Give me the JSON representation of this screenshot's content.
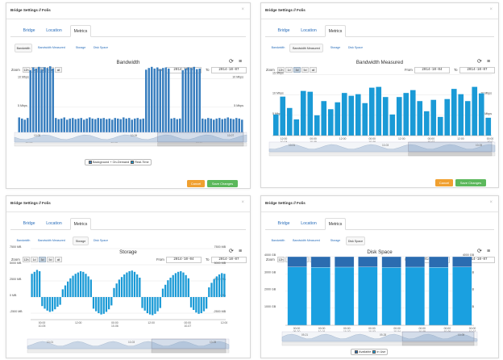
{
  "panels": [
    {
      "id": "bandwidth",
      "header_title": "Bridge Settings // Folis",
      "close_label": "×",
      "tabs": [
        {
          "label": "Bridge"
        },
        {
          "label": "Location"
        },
        {
          "label": "Metrics"
        }
      ],
      "active_tab": 2,
      "subtabs": [
        {
          "label": "Bandwidth"
        },
        {
          "label": "Bandwidth Measured"
        },
        {
          "label": "Storage"
        },
        {
          "label": "Disk Space"
        }
      ],
      "active_subtab": 0,
      "zoom_label": "Zoom",
      "zoom_options": [
        "12h",
        "1d",
        "3d",
        "5d",
        "all"
      ],
      "zoom_selected": "3d",
      "from_label": "From",
      "from_value": "2014-10-04",
      "to_label": "To",
      "to_value": "2014-10-07",
      "refresh_icon": "refresh-icon",
      "menu_icon": "menu-icon",
      "legend": [
        {
          "label": "Background + On-Demand",
          "color": "#3a7fbf"
        },
        {
          "label": "Real-Time",
          "color": "#1a9ad6"
        }
      ],
      "buttons": {
        "cancel": "Cancel",
        "save": "Save Changes"
      },
      "chart_data": {
        "type": "bar",
        "title": "Bandwidth",
        "y_tick_labels": [
          "10 Mbps",
          "5 Mbps"
        ],
        "y_ticks": [
          10,
          5
        ],
        "ylim": [
          0,
          12.5
        ],
        "x_tick_labels": [
          [
            "00:00",
            "10-05"
          ],
          [
            "12:00",
            ""
          ],
          [
            "00:00",
            "10-06"
          ],
          [
            "12:00",
            ""
          ],
          [
            "00:00",
            "10-07"
          ],
          [
            "12:00",
            ""
          ]
        ],
        "navigator_labels": [
          "10-05",
          "10-06",
          "10-07"
        ],
        "series": [
          {
            "name": "Background + On-Demand",
            "values": [
              3.2,
              3.0,
              2.8,
              3.1,
              11.5,
              12.0,
              11.8,
              12.1,
              11.6,
              12.0,
              11.9,
              12.2,
              11.8,
              3.1,
              2.9,
              3.0,
              3.2,
              2.8,
              3.0,
              3.1,
              2.9,
              3.0,
              3.1,
              2.8,
              3.0,
              3.2,
              3.0,
              2.9,
              3.1,
              3.0,
              3.1,
              2.9,
              3.0,
              2.8,
              3.1,
              3.0,
              2.9,
              3.2,
              3.0,
              3.1,
              2.8,
              3.0,
              3.1,
              2.9,
              3.0,
              11.6,
              11.9,
              12.1,
              11.8,
              12.0,
              11.7,
              11.9,
              12.0,
              11.8,
              3.0,
              3.1,
              2.9,
              3.0,
              11.5,
              11.8,
              12.0,
              11.9,
              12.1,
              11.7,
              11.8,
              3.0,
              2.9,
              3.1,
              3.0,
              2.8,
              3.0,
              3.1,
              2.9,
              3.0,
              3.2,
              3.0,
              2.9,
              3.1,
              3.0,
              2.8
            ]
          }
        ]
      }
    },
    {
      "id": "bandwidth-measured",
      "header_title": "Bridge Settings // Folis",
      "close_label": "×",
      "tabs": [
        {
          "label": "Bridge"
        },
        {
          "label": "Location"
        },
        {
          "label": "Metrics"
        }
      ],
      "active_tab": 2,
      "subtabs": [
        {
          "label": "Bandwidth"
        },
        {
          "label": "Bandwidth Measured"
        },
        {
          "label": "Storage"
        },
        {
          "label": "Disk Space"
        }
      ],
      "active_subtab": 1,
      "zoom_label": "Zoom",
      "zoom_options": [
        "12h",
        "1d",
        "3d",
        "5d",
        "all"
      ],
      "zoom_selected": "3d",
      "from_label": "From",
      "from_value": "2014-10-04",
      "to_label": "To",
      "to_value": "2014-10-07",
      "refresh_icon": "refresh-icon",
      "menu_icon": "menu-icon",
      "buttons": {
        "cancel": "Cancel",
        "save": "Save Changes"
      },
      "chart_data": {
        "type": "bar",
        "title": "Bandwidth Measured",
        "y_tick_labels": [
          "15 Mbps",
          "10 Mbps",
          "5 Mbps"
        ],
        "y_ticks": [
          15,
          10,
          5
        ],
        "ylim": [
          0,
          15.5
        ],
        "x_tick_labels": [
          [
            "12:00",
            "10-04"
          ],
          [
            "00:00",
            "10-05"
          ],
          [
            "12:00",
            ""
          ],
          [
            "00:00",
            "10-06"
          ],
          [
            "12:00",
            ""
          ],
          [
            "00:00",
            "10-07"
          ],
          [
            "12:00",
            ""
          ],
          [
            "00:00",
            "10-0"
          ]
        ],
        "navigator_labels": [
          "10-01",
          "10-03",
          "10-05"
        ],
        "series": [
          {
            "name": "",
            "values": [
              5.2,
              9.6,
              6.8,
              4.0,
              11.0,
              10.8,
              5.0,
              8.5,
              6.5,
              8.2,
              10.5,
              9.8,
              10.2,
              8.0,
              11.8,
              12.0,
              9.5,
              5.2,
              9.5,
              10.5,
              11.2,
              8.5,
              6.0,
              8.8,
              4.6,
              9.0,
              11.5,
              10.2,
              8.5,
              12.0,
              10.4,
              4.4
            ]
          }
        ]
      }
    },
    {
      "id": "storage",
      "header_title": "Bridge Settings // Folis",
      "close_label": "×",
      "tabs": [
        {
          "label": "Bridge"
        },
        {
          "label": "Location"
        },
        {
          "label": "Metrics"
        }
      ],
      "active_tab": 2,
      "subtabs": [
        {
          "label": "Bandwidth"
        },
        {
          "label": "Bandwidth Measured"
        },
        {
          "label": "Storage"
        },
        {
          "label": "Disk Space"
        }
      ],
      "active_subtab": 2,
      "zoom_label": "Zoom",
      "zoom_options": [
        "12h",
        "1d",
        "3d",
        "5d",
        "all"
      ],
      "zoom_selected": "3d",
      "from_label": "From",
      "from_value": "2014-10-04",
      "to_label": "To",
      "to_value": "2014-10-07",
      "refresh_icon": "refresh-icon",
      "menu_icon": "menu-icon",
      "chart_data": {
        "type": "bar",
        "title": "Storage",
        "y_tick_labels": [
          "7500 MB",
          "5000 MB",
          "2500 MB",
          "0 MB",
          "-2500 MB"
        ],
        "y_ticks": [
          7500,
          5000,
          2500,
          0,
          -2500
        ],
        "ylim": [
          -3500,
          7500
        ],
        "x_tick_labels": [
          [
            "00:00",
            "10-05"
          ],
          [
            "12:00",
            ""
          ],
          [
            "00:00",
            "10-06"
          ],
          [
            "12:00",
            ""
          ],
          [
            "00:00",
            "10-07"
          ],
          [
            "12:00",
            ""
          ]
        ],
        "navigator_labels": [
          "10-01",
          "10-03",
          "10-05"
        ],
        "series": [
          {
            "name": "",
            "values": [
              3600,
              3900,
              4200,
              4000,
              -1400,
              -1800,
              -2100,
              -2300,
              -2200,
              -1900,
              -1500,
              -1200,
              1200,
              1800,
              2400,
              2900,
              3300,
              3600,
              3800,
              4000,
              3900,
              3600,
              3200,
              2700,
              -1800,
              -2200,
              -2500,
              -2700,
              -2600,
              -2300,
              -1900,
              -1300,
              1400,
              2100,
              2700,
              3100,
              3500,
              3800,
              4000,
              4100,
              3900,
              3500,
              3000,
              -1700,
              -2100,
              -2500,
              -2700,
              -2800,
              -2600,
              -2200,
              -1700,
              1300,
              1900,
              2600,
              3000,
              3400,
              3700,
              3900,
              4000,
              3800,
              3400,
              2900,
              -1600,
              -2000,
              -2400,
              -2600,
              -2500,
              -2200,
              -1800,
              1500,
              2200,
              2800,
              3200,
              3500,
              3700,
              3600
            ]
          }
        ]
      }
    },
    {
      "id": "disk-space",
      "header_title": "Bridge Settings // Folis",
      "close_label": "×",
      "tabs": [
        {
          "label": "Bridge"
        },
        {
          "label": "Location"
        },
        {
          "label": "Metrics"
        }
      ],
      "active_tab": 2,
      "subtabs": [
        {
          "label": "Bandwidth"
        },
        {
          "label": "Bandwidth Measured"
        },
        {
          "label": "Storage"
        },
        {
          "label": "Disk Space"
        }
      ],
      "active_subtab": 3,
      "zoom_label": "Zoom",
      "zoom_options": [
        "12h",
        "1d",
        "3d",
        "5d",
        "all"
      ],
      "zoom_selected": "",
      "from_label": "From",
      "from_value": "2014-09-30",
      "to_label": "To",
      "to_value": "2014-10-07",
      "refresh_icon": "refresh-icon",
      "menu_icon": "menu-icon",
      "legend": [
        {
          "label": "Available",
          "color": "#2b6cb0"
        },
        {
          "label": "In Use",
          "color": "#1aa0e0"
        }
      ],
      "chart_data": {
        "type": "bar",
        "title": "Disk Space",
        "y_tick_labels": [
          "4000 GB",
          "3000 GB",
          "2000 GB",
          "1000 GB"
        ],
        "y_ticks": [
          4000,
          3000,
          2000,
          1000
        ],
        "ylim": [
          0,
          4000
        ],
        "x_tick_labels": [
          [
            "00:00",
            "09-30"
          ],
          [
            "00:00",
            "10-01"
          ],
          [
            "00:00",
            "10-02"
          ],
          [
            "00:00",
            "10-03"
          ],
          [
            "00:00",
            "10-04"
          ],
          [
            "00:00",
            "10-05"
          ],
          [
            "00:00",
            "10-06"
          ],
          [
            "00:00",
            "10-07"
          ]
        ],
        "navigator_labels": [
          "09-21",
          "09-28",
          "10-05"
        ],
        "categories": [
          "09-30",
          "10-01",
          "10-02",
          "10-03",
          "10-04",
          "10-05",
          "10-06",
          "10-07"
        ],
        "series": [
          {
            "name": "Available",
            "values": [
              600,
              620,
              610,
              600,
              630,
              610,
              620,
              600
            ]
          },
          {
            "name": "In Use",
            "values": [
              3400,
              3380,
              3390,
              3400,
              3370,
              3390,
              3380,
              3400
            ]
          }
        ]
      }
    }
  ]
}
